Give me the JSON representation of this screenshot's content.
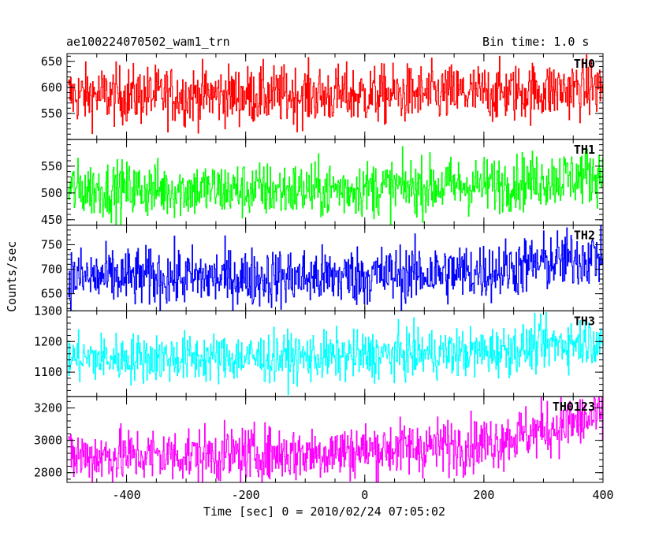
{
  "header": {
    "left_title": "ae100224070502_wam1_trn",
    "right_title": "Bin time: 1.0 s"
  },
  "axes": {
    "ylabel": "Counts/sec",
    "xlabel": "Time [sec] 0 = 2010/02/24 07:05:02"
  },
  "chart_data": {
    "type": "line",
    "x": {
      "range": [
        -500,
        400
      ],
      "bin": 1.0,
      "ticks": [
        -400,
        -200,
        0,
        200,
        400
      ]
    },
    "panels": [
      {
        "name": "TH0",
        "color": "#ff0000",
        "ylim": [
          500,
          665
        ],
        "yticks": [
          550,
          600,
          650
        ],
        "trend": [
          [
            -500,
            585
          ],
          [
            0,
            585
          ],
          [
            250,
            590
          ],
          [
            400,
            600
          ]
        ],
        "noise": 28
      },
      {
        "name": "TH1",
        "color": "#00ff00",
        "ylim": [
          440,
          600
        ],
        "yticks": [
          450,
          500,
          550
        ],
        "trend": [
          [
            -500,
            507
          ],
          [
            -100,
            505
          ],
          [
            200,
            515
          ],
          [
            400,
            535
          ]
        ],
        "noise": 26
      },
      {
        "name": "TH2",
        "color": "#0000ff",
        "ylim": [
          615,
          790
        ],
        "yticks": [
          650,
          700,
          750
        ],
        "trend": [
          [
            -500,
            683
          ],
          [
            -100,
            683
          ],
          [
            200,
            695
          ],
          [
            400,
            730
          ]
        ],
        "noise": 30
      },
      {
        "name": "TH3",
        "color": "#00ffff",
        "ylim": [
          1020,
          1300
        ],
        "yticks": [
          1100,
          1200,
          1300
        ],
        "trend": [
          [
            -500,
            1145
          ],
          [
            -100,
            1148
          ],
          [
            200,
            1165
          ],
          [
            400,
            1210
          ]
        ],
        "noise": 40
      },
      {
        "name": "TH0123",
        "color": "#ff00ff",
        "ylim": [
          2740,
          3270
        ],
        "yticks": [
          2800,
          3000,
          3200
        ],
        "trend": [
          [
            -500,
            2900
          ],
          [
            -100,
            2920
          ],
          [
            200,
            2980
          ],
          [
            400,
            3150
          ]
        ],
        "noise": 85
      }
    ]
  }
}
